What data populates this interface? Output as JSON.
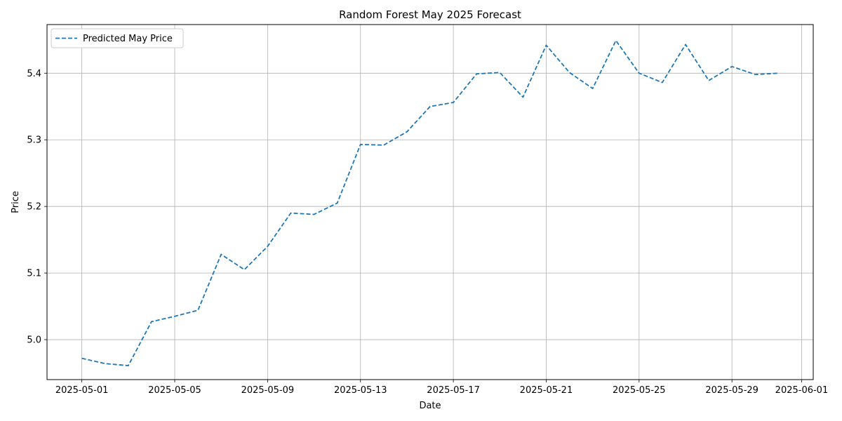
{
  "chart_data": {
    "type": "line",
    "title": "Random Forest May 2025 Forecast",
    "xlabel": "Date",
    "ylabel": "Price",
    "x_tick_labels": [
      "2025-05-01",
      "2025-05-05",
      "2025-05-09",
      "2025-05-13",
      "2025-05-17",
      "2025-05-21",
      "2025-05-25",
      "2025-05-29",
      "2025-06-01"
    ],
    "y_tick_labels": [
      "5.0",
      "5.1",
      "5.2",
      "5.3",
      "5.4"
    ],
    "ylim": [
      4.94,
      5.473
    ],
    "xlim": [
      "2025-04-29.5",
      "2025-06-01.5"
    ],
    "grid": true,
    "legend_position": "upper-left",
    "series": [
      {
        "name": "Predicted May Price",
        "line_style": "dashed",
        "color": "#1f77b4",
        "x": [
          "2025-05-01",
          "2025-05-02",
          "2025-05-03",
          "2025-05-04",
          "2025-05-05",
          "2025-05-06",
          "2025-05-07",
          "2025-05-08",
          "2025-05-09",
          "2025-05-10",
          "2025-05-11",
          "2025-05-12",
          "2025-05-13",
          "2025-05-14",
          "2025-05-15",
          "2025-05-16",
          "2025-05-17",
          "2025-05-18",
          "2025-05-19",
          "2025-05-20",
          "2025-05-21",
          "2025-05-22",
          "2025-05-23",
          "2025-05-24",
          "2025-05-25",
          "2025-05-26",
          "2025-05-27",
          "2025-05-28",
          "2025-05-29",
          "2025-05-30",
          "2025-05-31"
        ],
        "y": [
          4.972,
          4.964,
          4.961,
          5.027,
          5.035,
          5.044,
          5.128,
          5.105,
          5.14,
          5.19,
          5.188,
          5.205,
          5.293,
          5.292,
          5.312,
          5.35,
          5.356,
          5.399,
          5.401,
          5.364,
          5.442,
          5.401,
          5.377,
          5.449,
          5.4,
          5.386,
          5.443,
          5.389,
          5.41,
          5.398,
          5.4
        ]
      }
    ]
  }
}
